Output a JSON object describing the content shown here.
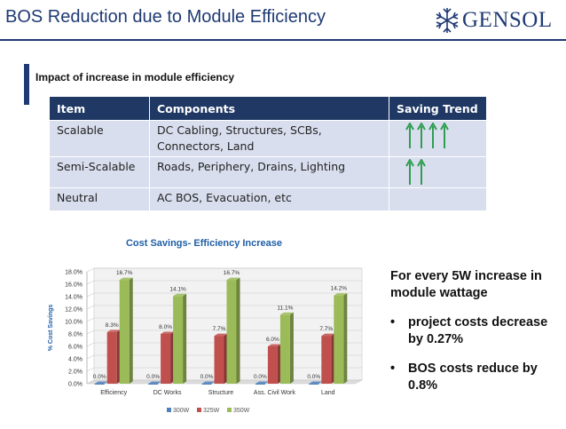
{
  "header": {
    "title": "BOS Reduction due to Module Efficiency",
    "logo_text": "GENSOL",
    "colors": {
      "brand": "#1f3a73",
      "accent_bar": "#1f3a73"
    }
  },
  "section": {
    "heading": "Impact of increase in module efficiency"
  },
  "table": {
    "columns": [
      "Item",
      "Components",
      "Saving Trend"
    ],
    "rows": [
      {
        "item": "Scalable",
        "components": "DC Cabling, Structures, SCBs, Connectors, Land",
        "arrows": 4
      },
      {
        "item": "Semi-Scalable",
        "components": "Roads, Periphery, Drains, Lighting",
        "arrows": 2
      },
      {
        "item": "Neutral",
        "components": "AC BOS, Evacuation, etc",
        "arrows": 0
      }
    ],
    "arrow_color": "#2e9e4f",
    "header_color": "#1f3864",
    "row_color": "#d9deee"
  },
  "chart_data": {
    "type": "bar",
    "title": "Cost Savings- Efficiency Increase",
    "ylabel": "% Cost Savings",
    "xlabel": "",
    "categories": [
      "Efficiency",
      "DC Works",
      "Structure",
      "Ass. Civil Work",
      "Land"
    ],
    "series": [
      {
        "name": "300W",
        "values": [
          0.0,
          0.0,
          0.0,
          0.0,
          0.0
        ],
        "labels": [
          "0.0%",
          "0.0%",
          "0.0%",
          "0.0%",
          "0.0%"
        ],
        "color": "#4f81bd"
      },
      {
        "name": "325W",
        "values": [
          8.3,
          8.0,
          7.7,
          6.0,
          7.7
        ],
        "labels": [
          "8.3%",
          "8.0%",
          "7.7%",
          "6.0%",
          "7.7%"
        ],
        "color": "#c0504d"
      },
      {
        "name": "350W",
        "values": [
          16.7,
          14.1,
          16.7,
          11.1,
          14.2
        ],
        "labels": [
          "16.7%",
          "14.1%",
          "16.7%",
          "11.1%",
          "14.2%"
        ],
        "color": "#9bbb59"
      }
    ],
    "ylim": [
      0,
      18
    ],
    "yticks": [
      "0.0%",
      "2.0%",
      "4.0%",
      "6.0%",
      "8.0%",
      "10.0%",
      "12.0%",
      "14.0%",
      "16.0%",
      "18.0%"
    ],
    "ytick_values": [
      0,
      2,
      4,
      6,
      8,
      10,
      12,
      14,
      16,
      18
    ],
    "grid": true,
    "legend_position": "bottom"
  },
  "side_text": {
    "intro": "For every 5W increase in module wattage",
    "bullets": [
      "project costs decrease by 0.27%",
      "BOS costs reduce by 0.8%"
    ],
    "bullet_symbol": "•"
  }
}
